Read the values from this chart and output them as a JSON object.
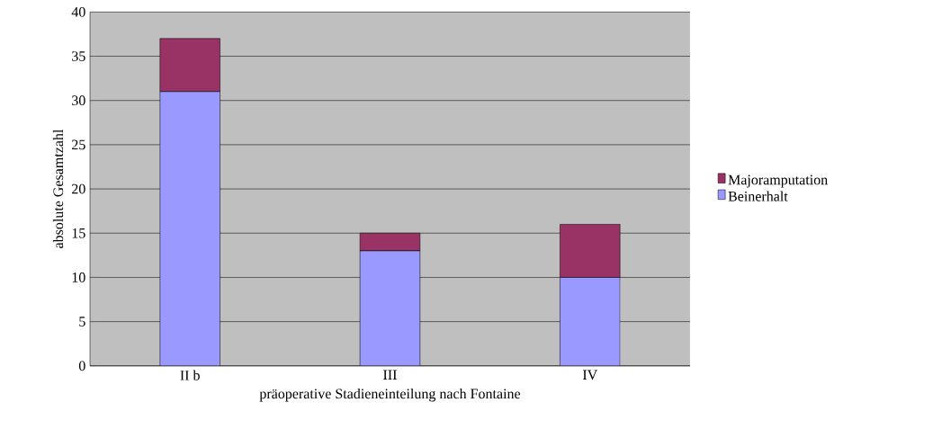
{
  "chart_data": {
    "type": "bar",
    "stacked": true,
    "xlabel": "präoperative Stadieneinteilung nach Fontaine",
    "ylabel": "absolute Gesamtzahl",
    "categories": [
      "II b",
      "III",
      "IV"
    ],
    "series": [
      {
        "name": "Beinerhalt",
        "color": "#9999ff",
        "values": [
          31,
          13,
          10
        ]
      },
      {
        "name": "Majoramputation",
        "color": "#993366",
        "values": [
          6,
          2,
          6
        ]
      }
    ],
    "ylim": [
      0,
      40
    ],
    "yticks": [
      0,
      5,
      10,
      15,
      20,
      25,
      30,
      35,
      40
    ],
    "grid": "y",
    "legend": "right"
  }
}
